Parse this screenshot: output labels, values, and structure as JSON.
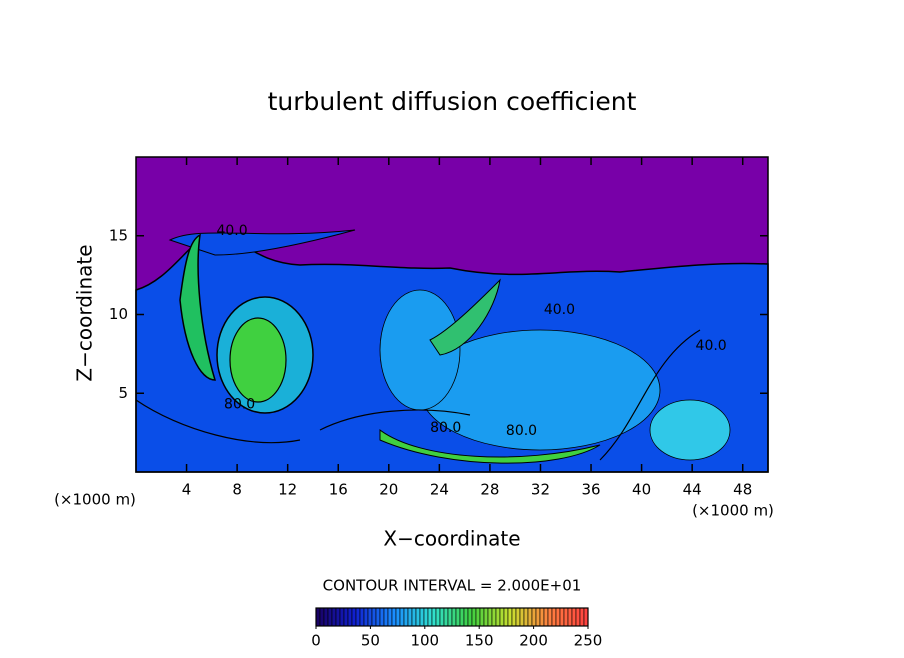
{
  "chart_data": {
    "type": "contour",
    "title": "turbulent diffusion coefficient",
    "x_label": "X−coordinate",
    "y_label": "Z−coordinate",
    "x_unit": "(×1000 m)",
    "y_unit": "(×1000 m)",
    "xlim": [
      0,
      50
    ],
    "ylim": [
      0,
      20
    ],
    "xticks": [
      4,
      8,
      12,
      16,
      20,
      24,
      28,
      32,
      36,
      40,
      44,
      48
    ],
    "yticks": [
      5,
      10,
      15
    ],
    "contour_interval_label": "CONTOUR INTERVAL = 2.000E+01",
    "contour_labels": [
      {
        "value": 40,
        "label": "40.0",
        "x": 7.6,
        "z": 15.3
      },
      {
        "value": 80,
        "label": "80.0",
        "x": 8.2,
        "z": 4.3
      },
      {
        "value": 80,
        "label": "80.0",
        "x": 24.5,
        "z": 2.8
      },
      {
        "value": 80,
        "label": "80.0",
        "x": 30.5,
        "z": 2.6
      },
      {
        "value": 40,
        "label": "40.0",
        "x": 33.5,
        "z": 10.3
      },
      {
        "value": 40,
        "label": "40.0",
        "x": 45.5,
        "z": 8.0
      }
    ],
    "colorbar": {
      "lim": [
        0,
        250
      ],
      "ticks": [
        0,
        50,
        100,
        150,
        200,
        250
      ],
      "colormap": [
        "#1a0060",
        "#1020d0",
        "#1a8cff",
        "#30e0d0",
        "#40d040",
        "#c8e030",
        "#ff8040",
        "#ff4040"
      ]
    }
  }
}
